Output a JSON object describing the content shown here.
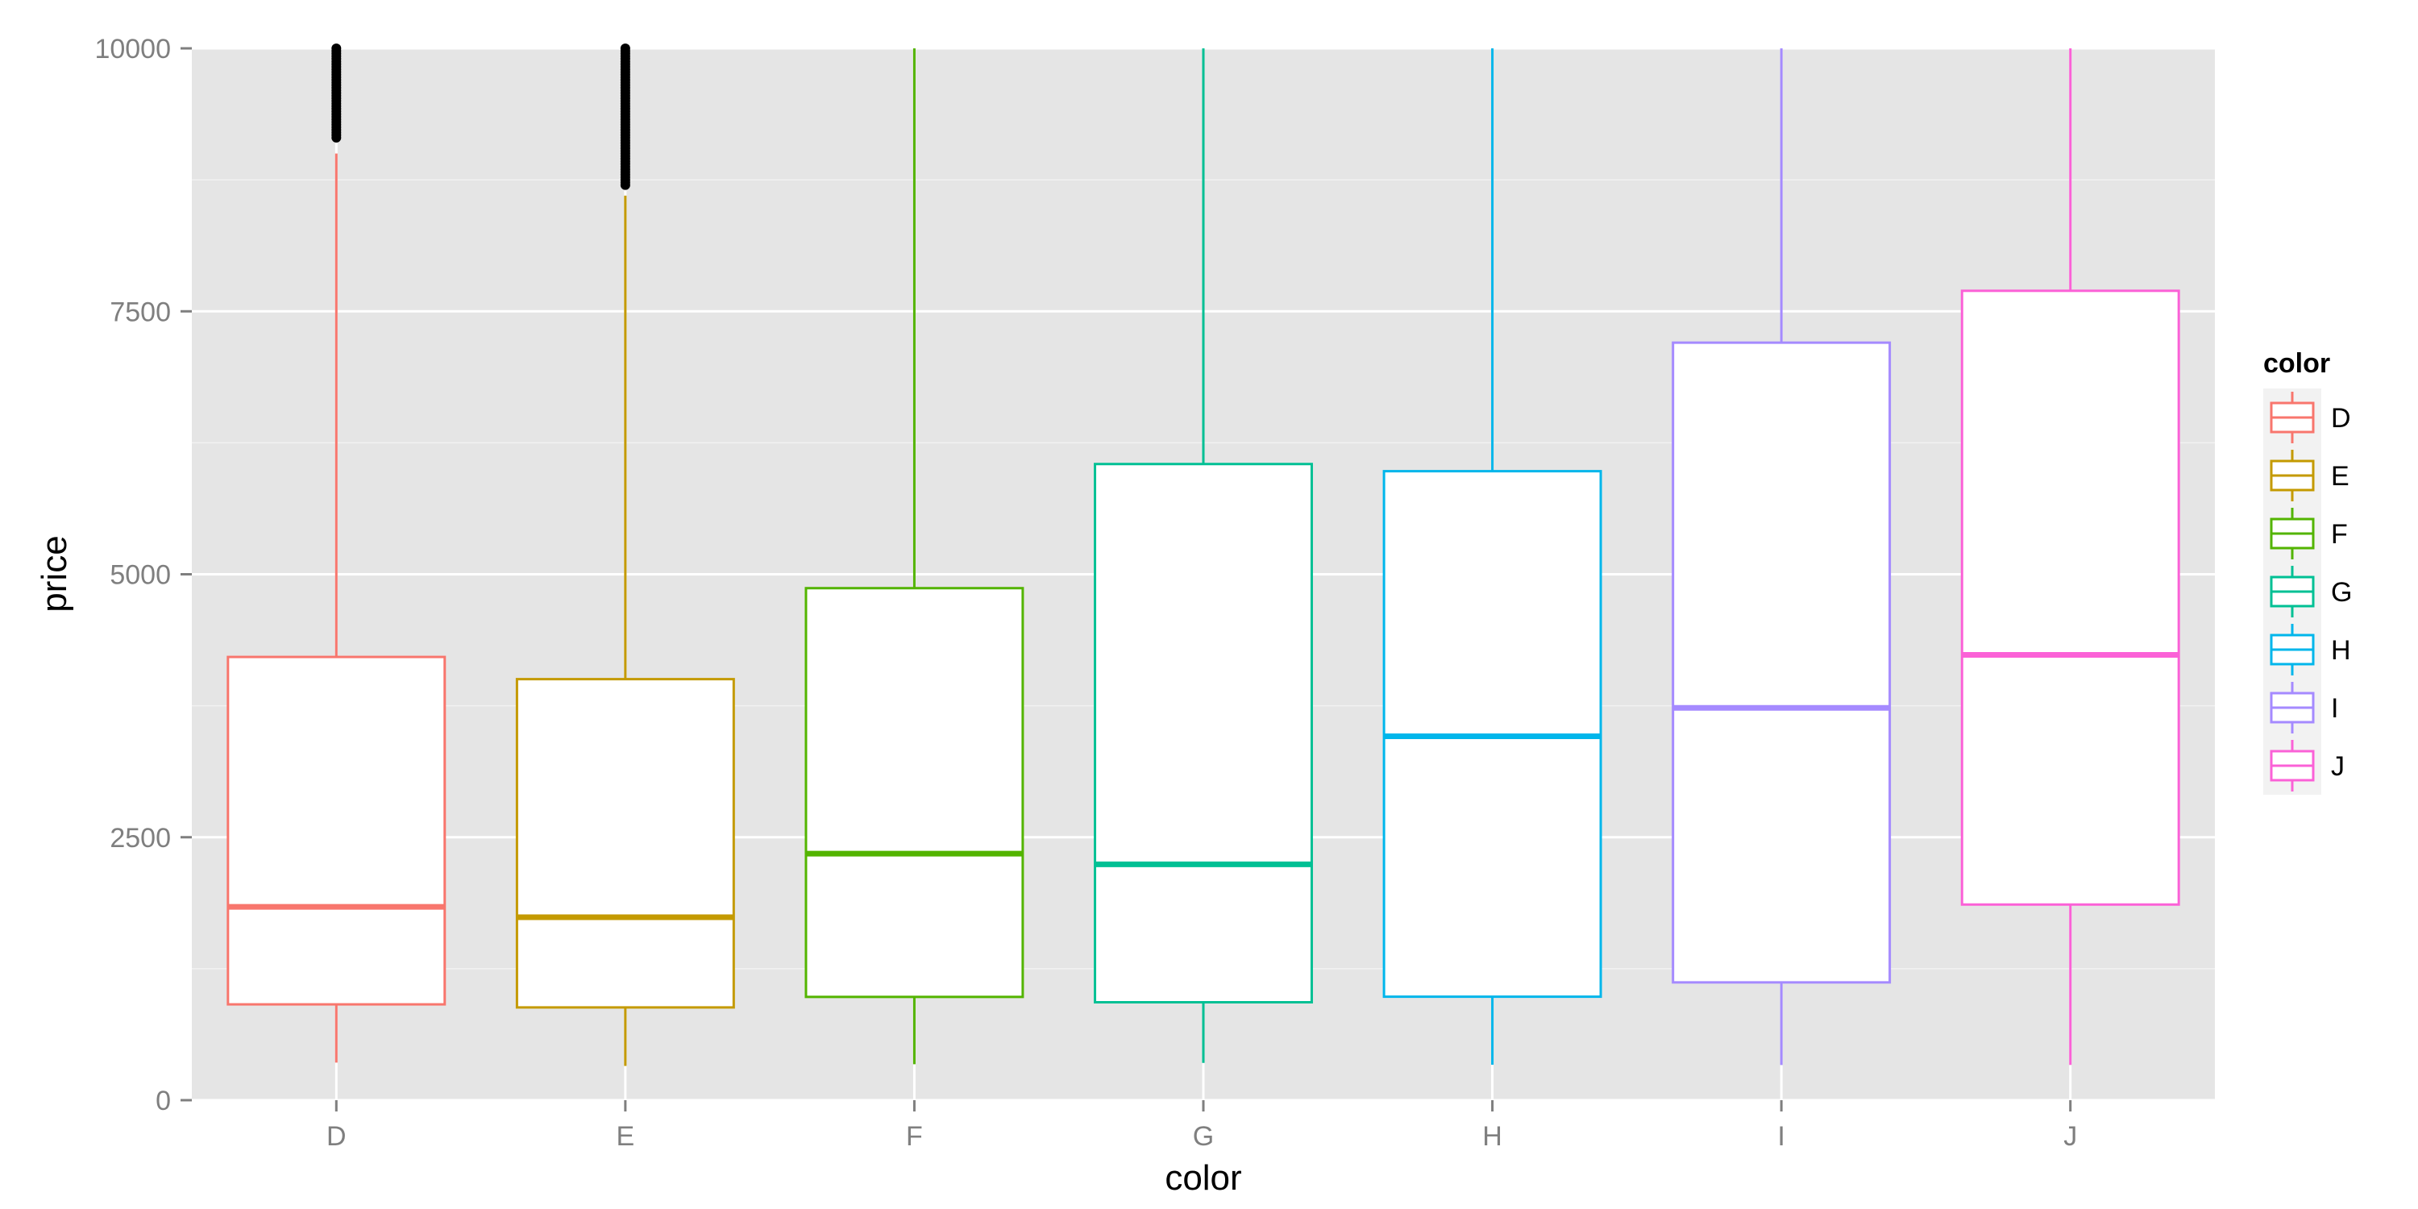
{
  "chart_data": {
    "type": "boxplot",
    "title": "",
    "xlabel": "color",
    "ylabel": "price",
    "ylim": [
      0,
      10000
    ],
    "y_ticks": [
      0,
      2500,
      5000,
      7500,
      10000
    ],
    "y_tick_labels": [
      "0",
      "2500",
      "5000",
      "7500",
      "10000"
    ],
    "grid": true,
    "panel_background": "#e5e5e5",
    "legend": {
      "title": "color",
      "position": "right"
    },
    "categories": [
      "D",
      "E",
      "F",
      "G",
      "H",
      "I",
      "J"
    ],
    "series": [
      {
        "name": "D",
        "color": "#F8766D",
        "whisker_low": 357,
        "q1": 911,
        "median": 1838,
        "q3": 4214,
        "whisker_high": 9000,
        "outliers_from": 9150,
        "outliers_to": 10000
      },
      {
        "name": "E",
        "color": "#C49A00",
        "whisker_low": 326,
        "q1": 882,
        "median": 1739,
        "q3": 4003,
        "whisker_high": 8600,
        "outliers_from": 8700,
        "outliers_to": 10000
      },
      {
        "name": "F",
        "color": "#53B400",
        "whisker_low": 342,
        "q1": 982,
        "median": 2344,
        "q3": 4868,
        "whisker_high": 10000
      },
      {
        "name": "G",
        "color": "#00C094",
        "whisker_low": 354,
        "q1": 931,
        "median": 2242,
        "q3": 6048,
        "whisker_high": 10000
      },
      {
        "name": "H",
        "color": "#00B6EB",
        "whisker_low": 337,
        "q1": 984,
        "median": 3460,
        "q3": 5980,
        "whisker_high": 10000
      },
      {
        "name": "I",
        "color": "#A58AFF",
        "whisker_low": 334,
        "q1": 1120,
        "median": 3730,
        "q3": 7202,
        "whisker_high": 10000
      },
      {
        "name": "J",
        "color": "#FB61D7",
        "whisker_low": 335,
        "q1": 1860,
        "median": 4234,
        "q3": 7695,
        "whisker_high": 10000
      }
    ]
  }
}
